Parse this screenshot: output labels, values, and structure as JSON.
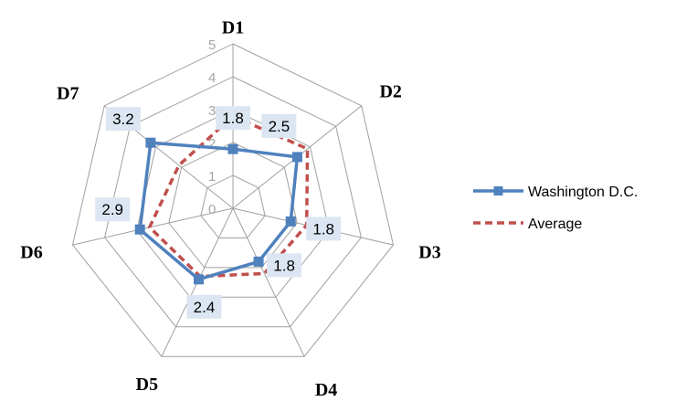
{
  "chart_data": {
    "type": "radar",
    "categories": [
      "D1",
      "D2",
      "D3",
      "D4",
      "D5",
      "D6",
      "D7"
    ],
    "rlim": [
      0,
      5
    ],
    "ticks": [
      "0",
      "1",
      "2",
      "3",
      "4",
      "5"
    ],
    "grid": true,
    "legend_position": "right",
    "series": [
      {
        "name": "Washington D.C.",
        "values": [
          1.8,
          2.5,
          1.8,
          1.8,
          2.4,
          2.9,
          3.2
        ],
        "data_labels": [
          "1.8",
          "2.5",
          "1.8",
          "1.8",
          "2.4",
          "2.9",
          "3.2"
        ],
        "color": "#4f81bd",
        "line_style": "solid",
        "marker": "square"
      },
      {
        "name": "Average",
        "values": [
          2.8,
          2.9,
          2.3,
          2.2,
          2.3,
          2.6,
          2.1
        ],
        "color": "#c0504d",
        "line_style": "dashed",
        "marker": "none"
      }
    ],
    "colors": {
      "grid": "#a0a0a0",
      "data_label_bg": "#dce6f2"
    }
  }
}
